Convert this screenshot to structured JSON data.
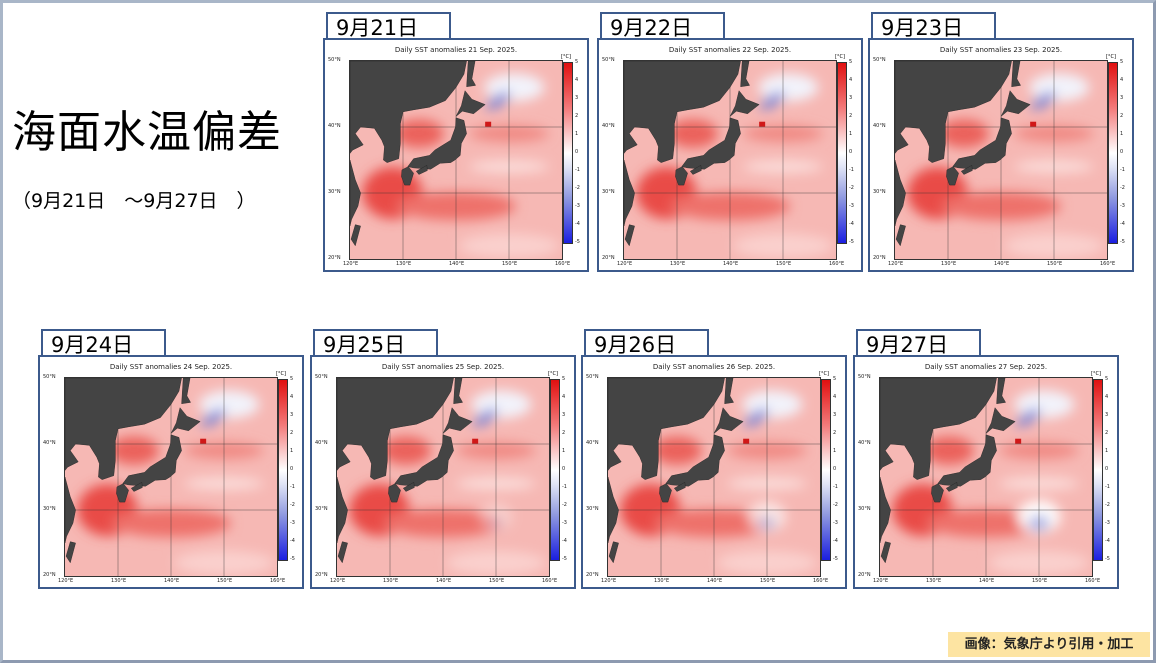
{
  "page": {
    "title": "海面水温偏差",
    "subtitle": "（9月21日　～9月27日　）",
    "credit": "画像：気象庁より引用・加工"
  },
  "map_axes": {
    "lat_labels": [
      "50°N",
      "40°N",
      "30°N",
      "20°N"
    ],
    "lon_labels": [
      "120°E",
      "130°E",
      "140°E",
      "150°E",
      "160°E"
    ],
    "colorbar_unit": "[°C]",
    "colorbar_ticks": [
      "5",
      "4",
      "3",
      "2",
      "1",
      "0",
      "-1",
      "-2",
      "-3",
      "-4",
      "-5"
    ],
    "colors": {
      "warm": "#e01010",
      "neutral": "#ffffff",
      "cool": "#1a1ee0",
      "land": "#444444"
    }
  },
  "panels": [
    {
      "label": "9月21日",
      "title": "Daily SST anomalies 21 Sep. 2025."
    },
    {
      "label": "9月22日",
      "title": "Daily SST anomalies 22 Sep. 2025."
    },
    {
      "label": "9月23日",
      "title": "Daily SST anomalies 23 Sep. 2025."
    },
    {
      "label": "9月24日",
      "title": "Daily SST anomalies 24 Sep. 2025."
    },
    {
      "label": "9月25日",
      "title": "Daily SST anomalies 25 Sep. 2025."
    },
    {
      "label": "9月26日",
      "title": "Daily SST anomalies 26 Sep. 2025."
    },
    {
      "label": "9月27日",
      "title": "Daily SST anomalies 27 Sep. 2025."
    }
  ]
}
